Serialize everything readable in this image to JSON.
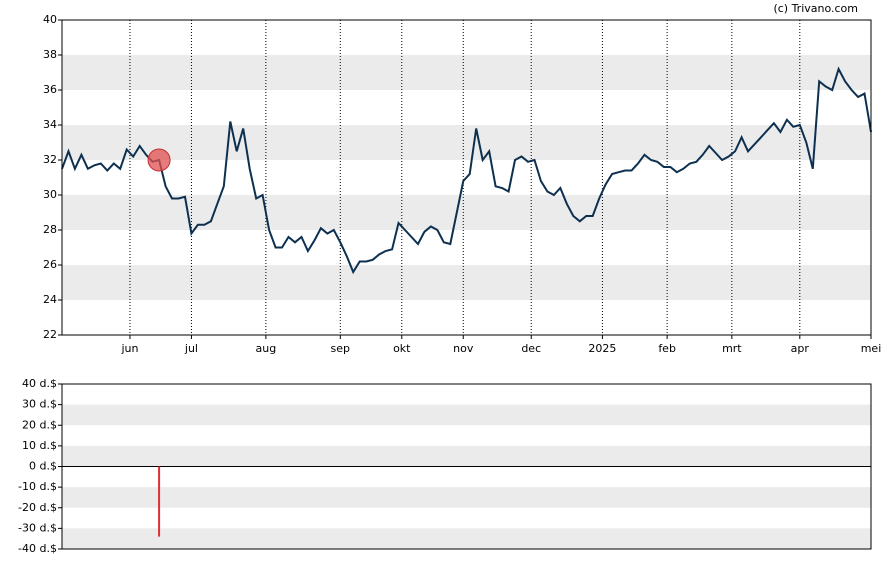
{
  "source": "(c) Trivano.com",
  "chart_data": [
    {
      "type": "line",
      "color": "#0d3050",
      "bands": true,
      "xgrid": true,
      "xlim": [
        0,
        250
      ],
      "ylim": [
        22,
        40
      ],
      "yticks": [
        22,
        24,
        26,
        28,
        30,
        32,
        34,
        36,
        38,
        40
      ],
      "xticks": [
        {
          "value": 21,
          "label": "jun"
        },
        {
          "value": 40,
          "label": "jul"
        },
        {
          "value": 63,
          "label": "aug"
        },
        {
          "value": 86,
          "label": "sep"
        },
        {
          "value": 105,
          "label": "okt"
        },
        {
          "value": 124,
          "label": "nov"
        },
        {
          "value": 145,
          "label": "dec"
        },
        {
          "value": 167,
          "label": "2025"
        },
        {
          "value": 187,
          "label": "feb"
        },
        {
          "value": 207,
          "label": "mrt"
        },
        {
          "value": 228,
          "label": "apr"
        },
        {
          "value": 250,
          "label": "mei"
        }
      ],
      "x": [
        0,
        2,
        4,
        6,
        8,
        10,
        12,
        14,
        16,
        18,
        20,
        22,
        24,
        26,
        28,
        30,
        32,
        34,
        36,
        38,
        40,
        42,
        44,
        46,
        48,
        50,
        52,
        54,
        56,
        58,
        60,
        62,
        64,
        66,
        68,
        70,
        72,
        74,
        76,
        78,
        80,
        82,
        84,
        86,
        88,
        90,
        92,
        94,
        96,
        98,
        100,
        102,
        104,
        106,
        108,
        110,
        112,
        114,
        116,
        118,
        120,
        122,
        124,
        126,
        128,
        130,
        132,
        134,
        136,
        138,
        140,
        142,
        144,
        146,
        148,
        150,
        152,
        154,
        156,
        158,
        160,
        162,
        164,
        166,
        168,
        170,
        172,
        174,
        176,
        178,
        180,
        182,
        184,
        186,
        188,
        190,
        192,
        194,
        196,
        198,
        200,
        202,
        204,
        206,
        208,
        210,
        212,
        214,
        216,
        218,
        220,
        222,
        224,
        226,
        228,
        230,
        232,
        234,
        236,
        238,
        240,
        242,
        244,
        246,
        248,
        250
      ],
      "values": [
        31.5,
        32.5,
        31.5,
        32.3,
        31.5,
        31.7,
        31.8,
        31.4,
        31.8,
        31.5,
        32.6,
        32.2,
        32.8,
        32.3,
        31.9,
        32.0,
        30.5,
        29.8,
        29.8,
        29.9,
        27.8,
        28.3,
        28.3,
        28.5,
        29.5,
        30.5,
        34.2,
        32.5,
        33.8,
        31.5,
        29.8,
        30.0,
        28.0,
        27.0,
        27.0,
        27.6,
        27.3,
        27.6,
        26.8,
        27.4,
        28.1,
        27.8,
        28.0,
        27.3,
        26.5,
        25.6,
        26.2,
        26.2,
        26.3,
        26.6,
        26.8,
        26.9,
        28.4,
        28.0,
        27.6,
        27.2,
        27.9,
        28.2,
        28.0,
        27.3,
        27.2,
        29.0,
        30.8,
        31.2,
        33.8,
        32.0,
        32.5,
        30.5,
        30.4,
        30.2,
        32.0,
        32.2,
        31.9,
        32.0,
        30.8,
        30.2,
        30.0,
        30.4,
        29.5,
        28.8,
        28.5,
        28.8,
        28.8,
        29.8,
        30.6,
        31.2,
        31.3,
        31.4,
        31.4,
        31.8,
        32.3,
        32.0,
        31.9,
        31.6,
        31.6,
        31.3,
        31.5,
        31.8,
        31.9,
        32.3,
        32.8,
        32.4,
        32.0,
        32.2,
        32.5,
        33.3,
        32.5,
        32.9,
        33.3,
        33.7,
        34.1,
        33.6,
        34.3,
        33.9,
        34.0,
        33.0,
        31.5,
        36.5,
        36.2,
        36.0,
        37.2,
        36.5,
        36.0,
        35.6,
        35.8,
        33.6
      ],
      "marker": {
        "x": 30,
        "value": 32,
        "color": "#e05050"
      }
    },
    {
      "type": "bar",
      "color": "#e03030",
      "bands": true,
      "xgrid": false,
      "xlim": [
        0,
        250
      ],
      "ylim": [
        -40,
        40
      ],
      "yticks": [
        {
          "value": -40,
          "label": "-40 d.$"
        },
        {
          "value": -30,
          "label": "-30 d.$"
        },
        {
          "value": -20,
          "label": "-20 d.$"
        },
        {
          "value": -10,
          "label": "-10 d.$"
        },
        {
          "value": 0,
          "label": "0 d.$"
        },
        {
          "value": 10,
          "label": "10 d.$"
        },
        {
          "value": 20,
          "label": "20 d.$"
        },
        {
          "value": 30,
          "label": "30 d.$"
        },
        {
          "value": 40,
          "label": "40 d.$"
        }
      ],
      "x": [
        30
      ],
      "values": [
        -34
      ]
    }
  ]
}
